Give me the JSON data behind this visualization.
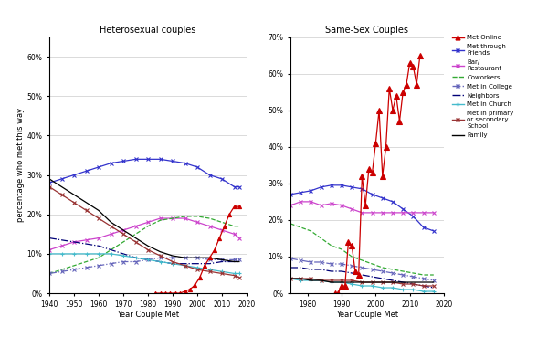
{
  "left_title": "Heterosexual couples",
  "right_title": "Same-Sex Couples",
  "xlabel": "Year Couple Met",
  "ylabel": "percentage who met this way",
  "het_met_online": {
    "x": [
      1983,
      1985,
      1987,
      1989,
      1991,
      1993,
      1995,
      1997,
      1999,
      2001,
      2003,
      2005,
      2007,
      2009,
      2011,
      2013,
      2015,
      2017
    ],
    "y": [
      0,
      0,
      0,
      0,
      0,
      0,
      0.5,
      1,
      2,
      4,
      7,
      9,
      11,
      14,
      17,
      20,
      22,
      22
    ],
    "color": "#cc0000",
    "linestyle": "-",
    "marker": "^",
    "label": "Met Online"
  },
  "het_friends": {
    "x": [
      1940,
      1945,
      1950,
      1955,
      1960,
      1965,
      1970,
      1975,
      1980,
      1985,
      1990,
      1995,
      2000,
      2005,
      2010,
      2015,
      2017
    ],
    "y": [
      28,
      29,
      30,
      31,
      32,
      33,
      33.5,
      34,
      34,
      34,
      33.5,
      33,
      32,
      30,
      29,
      27,
      27
    ],
    "color": "#3333cc",
    "linestyle": "-",
    "marker": "x",
    "label": "Met through Friends"
  },
  "het_bar": {
    "x": [
      1940,
      1945,
      1950,
      1955,
      1960,
      1965,
      1970,
      1975,
      1980,
      1985,
      1990,
      1995,
      2000,
      2005,
      2010,
      2015,
      2017
    ],
    "y": [
      11,
      12,
      13,
      13.5,
      14,
      15,
      16,
      17,
      18,
      19,
      19,
      19,
      18,
      17,
      16,
      15,
      14
    ],
    "color": "#cc44cc",
    "linestyle": "-",
    "marker": "x",
    "label": "Bar/Restaurant"
  },
  "het_coworkers": {
    "x": [
      1940,
      1945,
      1950,
      1955,
      1960,
      1965,
      1970,
      1975,
      1980,
      1985,
      1990,
      1995,
      2000,
      2005,
      2010,
      2015,
      2017
    ],
    "y": [
      5,
      6,
      7,
      8,
      9,
      11,
      13,
      15,
      17,
      18.5,
      19,
      19.5,
      19.5,
      19,
      18,
      17,
      17
    ],
    "color": "#33aa33",
    "linestyle": "--",
    "marker": null,
    "label": "Coworkers"
  },
  "het_college": {
    "x": [
      1940,
      1945,
      1950,
      1955,
      1960,
      1965,
      1970,
      1975,
      1980,
      1985,
      1990,
      1995,
      2000,
      2005,
      2010,
      2015,
      2017
    ],
    "y": [
      5,
      5.5,
      6,
      6.5,
      7,
      7.5,
      8,
      8,
      8.5,
      9,
      9,
      9,
      9,
      8.5,
      8.5,
      8.5,
      8.5
    ],
    "color": "#6666bb",
    "linestyle": "-.",
    "marker": "x",
    "label": "Met in College"
  },
  "het_neighbors": {
    "x": [
      1940,
      1945,
      1950,
      1955,
      1960,
      1965,
      1970,
      1975,
      1980,
      1985,
      1990,
      1995,
      2000,
      2005,
      2010,
      2015,
      2017
    ],
    "y": [
      14,
      13.5,
      13,
      12.5,
      12,
      11,
      10,
      9,
      8.5,
      8,
      7.5,
      7.5,
      7.5,
      7.5,
      8,
      8,
      8
    ],
    "color": "#000077",
    "linestyle": "-.",
    "marker": null,
    "label": "Neighbors"
  },
  "het_church": {
    "x": [
      1940,
      1945,
      1950,
      1955,
      1960,
      1965,
      1970,
      1975,
      1980,
      1985,
      1990,
      1995,
      2000,
      2005,
      2010,
      2015,
      2017
    ],
    "y": [
      10,
      10,
      10,
      10,
      10,
      10,
      9.5,
      9,
      8.5,
      8,
      7.5,
      7,
      6.5,
      6,
      5.5,
      5,
      5
    ],
    "color": "#44bbcc",
    "linestyle": "-",
    "marker": "+",
    "label": "Met in Church"
  },
  "het_primary": {
    "x": [
      1940,
      1945,
      1950,
      1955,
      1960,
      1965,
      1970,
      1975,
      1980,
      1985,
      1990,
      1995,
      2000,
      2005,
      2010,
      2015,
      2017
    ],
    "y": [
      27,
      25,
      23,
      21,
      19,
      17,
      15,
      13,
      11,
      9.5,
      8,
      7,
      6,
      5.5,
      5,
      4.5,
      4
    ],
    "color": "#993333",
    "linestyle": "-",
    "marker": "x",
    "label": "Met in primary or secondary School"
  },
  "het_family": {
    "x": [
      1940,
      1945,
      1950,
      1955,
      1960,
      1965,
      1970,
      1975,
      1980,
      1985,
      1990,
      1995,
      2000,
      2005,
      2010,
      2015,
      2017
    ],
    "y": [
      29,
      27,
      25,
      23,
      21,
      18,
      16,
      14,
      12,
      10.5,
      9.5,
      9,
      9,
      9,
      8.5,
      8,
      8
    ],
    "color": "#000000",
    "linestyle": "-",
    "marker": null,
    "label": "Family"
  },
  "ss_met_online": {
    "x": [
      1988,
      1989,
      1990,
      1991,
      1992,
      1993,
      1994,
      1995,
      1996,
      1997,
      1998,
      1999,
      2000,
      2001,
      2002,
      2003,
      2004,
      2005,
      2006,
      2007,
      2008,
      2009,
      2010,
      2011,
      2012,
      2013
    ],
    "y": [
      0,
      0,
      2,
      2,
      14,
      13,
      6,
      5,
      32,
      24,
      34,
      33,
      41,
      50,
      32,
      40,
      56,
      50,
      54,
      47,
      55,
      57,
      63,
      62,
      57,
      65
    ],
    "color": "#cc0000",
    "linestyle": "-",
    "marker": "^",
    "label": "Met Online"
  },
  "ss_friends": {
    "x": [
      1975,
      1978,
      1981,
      1984,
      1987,
      1990,
      1993,
      1996,
      1999,
      2002,
      2005,
      2008,
      2011,
      2014,
      2017
    ],
    "y": [
      27,
      27.5,
      28,
      29,
      29.5,
      29.5,
      29,
      28.5,
      27,
      26,
      25,
      23,
      21,
      18,
      17
    ],
    "color": "#3333cc",
    "linestyle": "-",
    "marker": "x",
    "label": "Met through Friends"
  },
  "ss_bar": {
    "x": [
      1975,
      1978,
      1981,
      1984,
      1987,
      1990,
      1993,
      1996,
      1999,
      2002,
      2005,
      2008,
      2011,
      2014,
      2017
    ],
    "y": [
      24,
      25,
      25,
      24,
      24.5,
      24,
      23,
      22,
      22,
      22,
      22,
      22,
      22,
      22,
      22
    ],
    "color": "#cc44cc",
    "linestyle": "-",
    "marker": "x",
    "label": "Bar/Restaurant"
  },
  "ss_coworkers": {
    "x": [
      1975,
      1978,
      1981,
      1984,
      1987,
      1990,
      1993,
      1996,
      1999,
      2002,
      2005,
      2008,
      2011,
      2014,
      2017
    ],
    "y": [
      19,
      18,
      17,
      15,
      13,
      12,
      10,
      9,
      8,
      7,
      6.5,
      6,
      5.5,
      5,
      5
    ],
    "color": "#33aa33",
    "linestyle": "--",
    "marker": null,
    "label": "Coworkers"
  },
  "ss_college": {
    "x": [
      1975,
      1978,
      1981,
      1984,
      1987,
      1990,
      1993,
      1996,
      1999,
      2002,
      2005,
      2008,
      2011,
      2014,
      2017
    ],
    "y": [
      9.5,
      9,
      8.5,
      8.5,
      8,
      8,
      7.5,
      7,
      6.5,
      6,
      5.5,
      5,
      4.5,
      4,
      3.5
    ],
    "color": "#6666bb",
    "linestyle": "-.",
    "marker": "x",
    "label": "Met in College"
  },
  "ss_neighbors": {
    "x": [
      1975,
      1978,
      1981,
      1984,
      1987,
      1990,
      1993,
      1996,
      1999,
      2002,
      2005,
      2008,
      2011,
      2014,
      2017
    ],
    "y": [
      7,
      7,
      6.5,
      6.5,
      6,
      6,
      5.5,
      5,
      4.5,
      4,
      3.5,
      3,
      2.5,
      2,
      1.5
    ],
    "color": "#000077",
    "linestyle": "-.",
    "marker": null,
    "label": "Neighbors"
  },
  "ss_church": {
    "x": [
      1975,
      1978,
      1981,
      1984,
      1987,
      1990,
      1993,
      1996,
      1999,
      2002,
      2005,
      2008,
      2011,
      2014,
      2017
    ],
    "y": [
      4,
      3.5,
      3.5,
      3.5,
      3,
      3,
      2.5,
      2,
      2,
      1.5,
      1.5,
      1,
      1,
      0.5,
      0.5
    ],
    "color": "#44bbcc",
    "linestyle": "-",
    "marker": "+",
    "label": "Met in Church"
  },
  "ss_primary": {
    "x": [
      1975,
      1978,
      1981,
      1984,
      1987,
      1990,
      1993,
      1996,
      1999,
      2002,
      2005,
      2008,
      2011,
      2014,
      2017
    ],
    "y": [
      4,
      4,
      4,
      3.5,
      3.5,
      3.5,
      3.5,
      3,
      3,
      3,
      3,
      2.5,
      2.5,
      2,
      2
    ],
    "color": "#993333",
    "linestyle": "-",
    "marker": "x",
    "label": "Met in primary or secondary School"
  },
  "ss_family": {
    "x": [
      1975,
      1978,
      1981,
      1984,
      1987,
      1990,
      1993,
      1996,
      1999,
      2002,
      2005,
      2008,
      2011,
      2014,
      2017
    ],
    "y": [
      4,
      4,
      3.5,
      3.5,
      3,
      3,
      3,
      3,
      3,
      3,
      3,
      3,
      3,
      3,
      3
    ],
    "color": "#000000",
    "linestyle": "-",
    "marker": null,
    "label": "Family"
  },
  "legend_entries": [
    {
      "label": "Met Online",
      "color": "#cc0000",
      "linestyle": "-",
      "marker": "^"
    },
    {
      "label": "Met through\nFriends",
      "color": "#3333cc",
      "linestyle": "-",
      "marker": "x"
    },
    {
      "label": "Bar/\nRestaurant",
      "color": "#cc44cc",
      "linestyle": "-",
      "marker": "x"
    },
    {
      "label": "Coworkers",
      "color": "#33aa33",
      "linestyle": "--",
      "marker": null
    },
    {
      "label": "Met in College",
      "color": "#6666bb",
      "linestyle": "-.",
      "marker": "x"
    },
    {
      "label": "Neighbors",
      "color": "#000077",
      "linestyle": "-.",
      "marker": null
    },
    {
      "label": "Met in Church",
      "color": "#44bbcc",
      "linestyle": "-",
      "marker": "+"
    },
    {
      "label": "Met in primary\nor secondary\nSchool",
      "color": "#993333",
      "linestyle": "-",
      "marker": "x"
    },
    {
      "label": "Family",
      "color": "#000000",
      "linestyle": "-",
      "marker": null
    }
  ],
  "fig_width": 6.0,
  "fig_height": 3.69,
  "dpi": 100
}
